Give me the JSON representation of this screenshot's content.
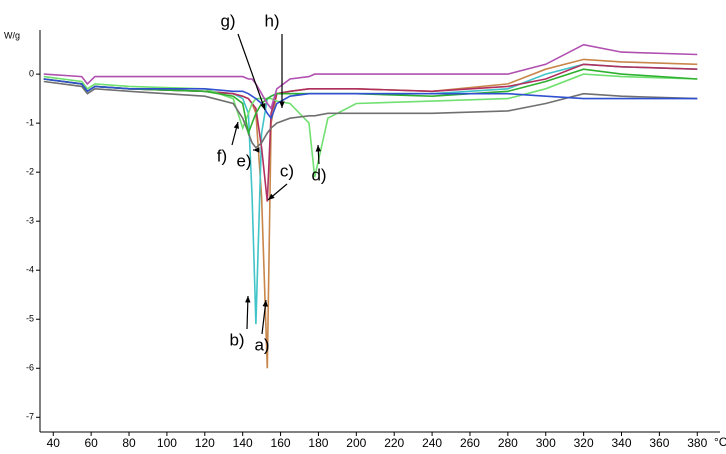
{
  "chart_data": {
    "type": "line",
    "y_label": "W/g",
    "x_unit": "°C",
    "x": [
      35,
      55,
      58,
      62,
      80,
      120,
      135,
      140,
      143,
      145,
      147,
      150,
      153,
      155,
      158,
      165,
      175,
      178,
      185,
      200,
      240,
      280,
      300,
      320,
      340,
      380
    ],
    "series": [
      {
        "name": "a)",
        "color": "#c8864a",
        "values": [
          -0.1,
          -0.2,
          -0.35,
          -0.25,
          -0.3,
          -0.35,
          -0.4,
          -0.45,
          -0.5,
          -0.6,
          -0.8,
          -2.5,
          -6.0,
          -1.0,
          -0.4,
          -0.35,
          -0.3,
          -0.3,
          -0.3,
          -0.3,
          -0.35,
          -0.2,
          0.1,
          0.3,
          0.25,
          0.2
        ]
      },
      {
        "name": "b)",
        "color": "#40c4c8",
        "values": [
          -0.1,
          -0.2,
          -0.35,
          -0.25,
          -0.3,
          -0.35,
          -0.4,
          -0.5,
          -0.8,
          -2.5,
          -5.1,
          -1.2,
          -0.5,
          -0.45,
          -0.4,
          -0.4,
          -0.4,
          -0.4,
          -0.4,
          -0.4,
          -0.4,
          -0.3,
          0.0,
          0.2,
          0.15,
          0.1
        ]
      },
      {
        "name": "c)",
        "color": "#b03060",
        "values": [
          -0.1,
          -0.2,
          -0.35,
          -0.25,
          -0.3,
          -0.35,
          -0.4,
          -0.45,
          -0.5,
          -0.6,
          -0.7,
          -1.5,
          -2.6,
          -0.8,
          -0.4,
          -0.35,
          -0.3,
          -0.3,
          -0.3,
          -0.3,
          -0.35,
          -0.25,
          -0.1,
          0.2,
          0.15,
          0.1
        ]
      },
      {
        "name": "d)",
        "color": "#70e070",
        "values": [
          -0.05,
          -0.15,
          -0.3,
          -0.2,
          -0.25,
          -0.3,
          -0.5,
          -1.1,
          -0.8,
          -0.6,
          -0.5,
          -0.5,
          -0.5,
          -0.5,
          -0.55,
          -0.6,
          -1.0,
          -2.1,
          -0.9,
          -0.6,
          -0.55,
          -0.5,
          -0.3,
          0.0,
          -0.05,
          -0.1
        ]
      },
      {
        "name": "e)",
        "color": "#707070",
        "values": [
          -0.15,
          -0.25,
          -0.4,
          -0.3,
          -0.35,
          -0.45,
          -0.6,
          -0.9,
          -1.2,
          -1.4,
          -1.5,
          -1.4,
          -1.2,
          -1.1,
          -1.0,
          -0.9,
          -0.85,
          -0.85,
          -0.8,
          -0.8,
          -0.8,
          -0.75,
          -0.6,
          -0.4,
          -0.45,
          -0.5
        ]
      },
      {
        "name": "f)",
        "color": "#30b030",
        "values": [
          -0.1,
          -0.2,
          -0.35,
          -0.25,
          -0.3,
          -0.35,
          -0.45,
          -0.6,
          -1.2,
          -1.0,
          -0.8,
          -0.6,
          -0.5,
          -0.45,
          -0.4,
          -0.4,
          -0.4,
          -0.4,
          -0.4,
          -0.4,
          -0.45,
          -0.35,
          -0.15,
          0.1,
          0.0,
          -0.1
        ]
      },
      {
        "name": "g)",
        "color": "#3050d0",
        "values": [
          -0.1,
          -0.2,
          -0.35,
          -0.25,
          -0.3,
          -0.3,
          -0.35,
          -0.35,
          -0.4,
          -0.45,
          -0.5,
          -0.6,
          -0.8,
          -0.9,
          -0.6,
          -0.45,
          -0.4,
          -0.4,
          -0.4,
          -0.4,
          -0.4,
          -0.4,
          -0.45,
          -0.5,
          -0.5,
          -0.5
        ]
      },
      {
        "name": "h)",
        "color": "#b050b0",
        "values": [
          0.0,
          -0.05,
          -0.2,
          -0.05,
          -0.05,
          -0.05,
          -0.05,
          -0.05,
          -0.1,
          -0.1,
          -0.2,
          -0.4,
          -0.6,
          -0.7,
          -0.3,
          -0.1,
          -0.05,
          0.0,
          0.0,
          0.0,
          0.0,
          0.0,
          0.2,
          0.6,
          0.45,
          0.4
        ]
      }
    ],
    "xlim": [
      33,
      392
    ],
    "xticks": [
      40,
      60,
      80,
      100,
      120,
      140,
      160,
      180,
      200,
      220,
      240,
      260,
      280,
      300,
      320,
      340,
      360,
      380
    ],
    "ylim": [
      -7.3,
      0.9
    ],
    "yticks": [
      0,
      -1,
      -2,
      -3,
      -4,
      -5,
      -6,
      -7
    ],
    "grid": false
  }
}
